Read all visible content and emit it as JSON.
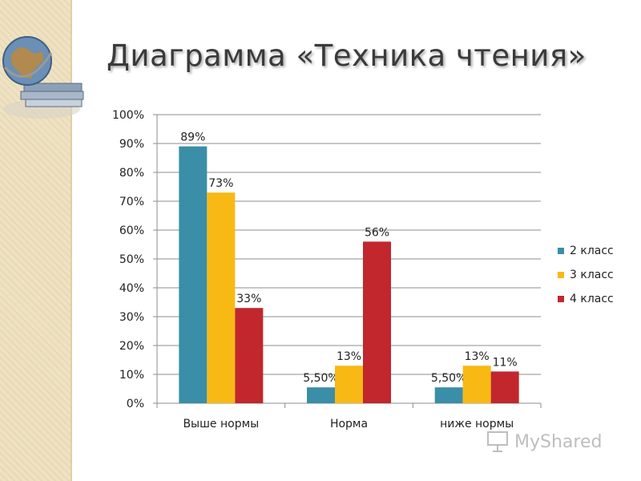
{
  "title": "Диаграмма «Техника чтения»",
  "chart_data": {
    "type": "bar",
    "categories": [
      "Выше нормы",
      "Норма",
      "ниже нормы"
    ],
    "series": [
      {
        "name": "2 класс",
        "values": [
          89,
          5.5,
          5.5
        ],
        "labels": [
          "89%",
          "5,50%",
          "5,50%"
        ],
        "color": "#3a8ea8"
      },
      {
        "name": "3 класс",
        "values": [
          73,
          13,
          13
        ],
        "labels": [
          "73%",
          "13%",
          "13%"
        ],
        "color": "#f9b914"
      },
      {
        "name": "4 класс",
        "values": [
          33,
          56,
          11
        ],
        "labels": [
          "33%",
          "56%",
          "11%"
        ],
        "color": "#c1272d"
      }
    ],
    "yticks": [
      "0%",
      "10%",
      "20%",
      "30%",
      "40%",
      "50%",
      "60%",
      "70%",
      "80%",
      "90%",
      "100%"
    ],
    "ylim": [
      0,
      100
    ],
    "grid": true,
    "legend_position": "right"
  },
  "watermark": {
    "text": "MyShared"
  }
}
